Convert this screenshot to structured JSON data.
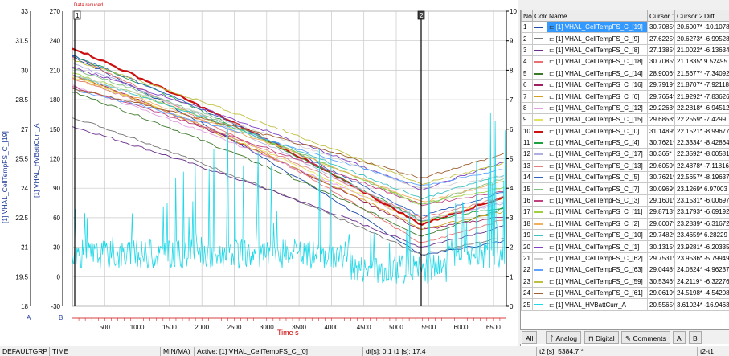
{
  "plot": {
    "banner": "Data reduced",
    "cursor1_label": "1",
    "cursor2_label": "2",
    "y_axis_labels": {
      "left1": "[1]  VHAL_CellTempFS_C_[19]",
      "left2": "[1]  VHAL_HVBattCurr_A",
      "unit_a": "A",
      "unit_b": "B"
    },
    "x_title": "Time  s",
    "axis_temp": {
      "min": 18,
      "max": 33,
      "ticks": [
        "33",
        "31.5",
        "30",
        "28.5",
        "27",
        "25.5",
        "24",
        "22.5",
        "21",
        "19.5",
        "18"
      ]
    },
    "axis_curr": {
      "min": -30,
      "max": 270,
      "ticks": [
        "270",
        "240",
        "210",
        "180",
        "150",
        "120",
        "90",
        "60",
        "30",
        "0",
        "-30"
      ]
    },
    "axis_right": {
      "min": 0,
      "max": 10,
      "ticks": [
        "10",
        "9",
        "8",
        "7",
        "6",
        "5",
        "4",
        "3",
        "2",
        "1",
        "0"
      ]
    },
    "x_ticks": [
      "500",
      "1000",
      "1500",
      "2000",
      "2500",
      "3000",
      "3500",
      "4000",
      "4500",
      "5000",
      "5500",
      "6000",
      "6500"
    ],
    "x_range": [
      0,
      6700
    ],
    "cursor1_time": 0,
    "cursor2_time": 5384.7
  },
  "table": {
    "headers": {
      "no": "No",
      "color": "Color",
      "name": "Name",
      "c1": "Cursor 1",
      "c2": "Cursor 2",
      "diff": "Diff."
    },
    "rows": [
      {
        "no": "1",
        "color": "#1f4aa8",
        "name": "[1]  VHAL_CellTempFS_C_[19]",
        "c1": "30.7085*",
        "c2": "20.6007*",
        "diff": "-10.1078"
      },
      {
        "no": "2",
        "color": "#777777",
        "name": "[1]  VHAL_CellTempFS_C_[9]",
        "c1": "27.6225*",
        "c2": "20.6273*",
        "diff": "-6.99528"
      },
      {
        "no": "3",
        "color": "#6a2d8a",
        "name": "[1]  VHAL_CellTempFS_C_[8]",
        "c1": "27.1385*",
        "c2": "21.0022*",
        "diff": "-6.13634"
      },
      {
        "no": "4",
        "color": "#e87070",
        "name": "[1]  VHAL_CellTempFS_C_[18]",
        "c1": "30.7085*",
        "c2": "21.1835*",
        "diff": "9.52495"
      },
      {
        "no": "5",
        "color": "#3c7a2a",
        "name": "[1]  VHAL_CellTempFS_C_[14]",
        "c1": "28.9006*",
        "c2": "21.5677*",
        "diff": "-7.34092"
      },
      {
        "no": "6",
        "color": "#9a2060",
        "name": "[1]  VHAL_CellTempFS_C_[16]",
        "c1": "29.7919*",
        "c2": "21.8707*",
        "diff": "-7.92118"
      },
      {
        "no": "7",
        "color": "#d4a020",
        "name": "[1]  VHAL_CellTempFS_C_[6]",
        "c1": "29.7654*",
        "c2": "21.9292*",
        "diff": "-7.83626"
      },
      {
        "no": "8",
        "color": "#e0a0e0",
        "name": "[1]  VHAL_CellTempFS_C_[12]",
        "c1": "29.2263*",
        "c2": "22.2818*",
        "diff": "-6.94512"
      },
      {
        "no": "9",
        "color": "#e6e060",
        "name": "[1]  VHAL_CellTempFS_C_[15]",
        "c1": "29.6858*",
        "c2": "22.2559*",
        "diff": "-7.4299"
      },
      {
        "no": "10",
        "color": "#cc1010",
        "name": "[1]  VHAL_CellTempFS_C_[0]",
        "c1": "31.1489*",
        "c2": "22.1521*",
        "diff": "-8.99677"
      },
      {
        "no": "11",
        "color": "#20a040",
        "name": "[1]  VHAL_CellTempFS_C_[4]",
        "c1": "30.7621*",
        "c2": "22.3334*",
        "diff": "-8.42864"
      },
      {
        "no": "12",
        "color": "#b0b0e0",
        "name": "[1]  VHAL_CellTempFS_C_[17]",
        "c1": "30.365*",
        "c2": "22.3592*",
        "diff": "-8.00581"
      },
      {
        "no": "13",
        "color": "#e08080",
        "name": "[1]  VHAL_CellTempFS_C_[13]",
        "c1": "29.6059*",
        "c2": "22.4878*",
        "diff": "-7.11816"
      },
      {
        "no": "14",
        "color": "#3060c0",
        "name": "[1]  VHAL_CellTempFS_C_[5]",
        "c1": "30.7621*",
        "c2": "22.5657*",
        "diff": "-8.19637"
      },
      {
        "no": "15",
        "color": "#80c080",
        "name": "[1]  VHAL_CellTempFS_C_[7]",
        "c1": "30.0969*",
        "c2": "23.1269*",
        "diff": "6.97003"
      },
      {
        "no": "16",
        "color": "#c04080",
        "name": "[1]  VHAL_CellTempFS_C_[3]",
        "c1": "29.1601*",
        "c2": "23.1531*",
        "diff": "-6.00697"
      },
      {
        "no": "17",
        "color": "#a0d040",
        "name": "[1]  VHAL_CellTempFS_C_[11]",
        "c1": "29.8713*",
        "c2": "23.1793*",
        "diff": "-6.69192"
      },
      {
        "no": "18",
        "color": "#f0b060",
        "name": "[1]  VHAL_CellTempFS_C_[2]",
        "c1": "29.6007*",
        "c2": "23.2839*",
        "diff": "-6.31672"
      },
      {
        "no": "19",
        "color": "#40c0c0",
        "name": "[1]  VHAL_CellTempFS_C_[10]",
        "c1": "29.7482*",
        "c2": "23.4659*",
        "diff": "6.28229"
      },
      {
        "no": "20",
        "color": "#8040c0",
        "name": "[1]  VHAL_CellTempFS_C_[1]",
        "c1": "30.1315*",
        "c2": "23.9281*",
        "diff": "-6.20335"
      },
      {
        "no": "21",
        "color": "#d0d0d0",
        "name": "[1]  VHAL_CellTempFS_C_[62]",
        "c1": "29.7531*",
        "c2": "23.9536*",
        "diff": "-5.79949"
      },
      {
        "no": "22",
        "color": "#60a0ff",
        "name": "[1]  VHAL_CellTempFS_C_[63]",
        "c1": "29.0448*",
        "c2": "24.0824*",
        "diff": "-4.96237"
      },
      {
        "no": "23",
        "color": "#c0c040",
        "name": "[1]  VHAL_CellTempFS_C_[59]",
        "c1": "30.5346*",
        "c2": "24.2119*",
        "diff": "-6.32276"
      },
      {
        "no": "24",
        "color": "#a06030",
        "name": "[1]  VHAL_CellTempFS_C_[61]",
        "c1": "29.0619*",
        "c2": "24.5198*",
        "diff": "-4.54208"
      },
      {
        "no": "25",
        "color": "#20d8e8",
        "name": "[1]  VHAL_HVBattCurr_A",
        "c1": "20.5565*",
        "c2": "3.61024*",
        "diff": "-16.9463"
      }
    ]
  },
  "tabs": {
    "all": "All",
    "analog": "Analog",
    "digital": "Digital",
    "comments": "Comments",
    "a": "A",
    "b": "B"
  },
  "status": {
    "group": "DEFAULTGRP",
    "time": "TIME",
    "minmax": "MIN/MA)",
    "active": "Active:  [1]  VHAL_CellTempFS_C_[0]",
    "dt": "dt[s]: 0.1  t1 [s]: 17.4",
    "t2": "t2 [s]:  5384.7  *",
    "t2t1": "t2-t1"
  },
  "colors": {
    "cursor_line": "#000000",
    "grid": "#c8c8c8",
    "current_trace": "#20d8e8",
    "selected": "#3399ff",
    "x_title": "#cc0000"
  }
}
